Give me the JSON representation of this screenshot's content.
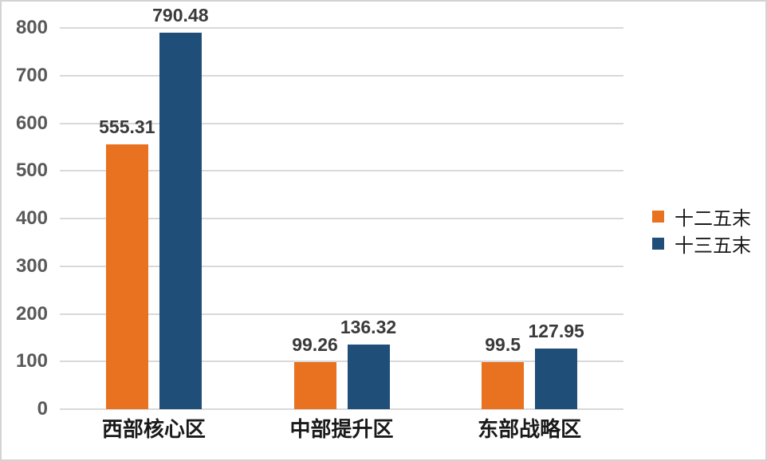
{
  "window": {
    "background": "#ffffff",
    "border_color": "#d3d3d3"
  },
  "chart_data": {
    "type": "bar",
    "title": "",
    "categories": [
      "西部核心区",
      "中部提升区",
      "东部战略区"
    ],
    "series": [
      {
        "name": "十二五末",
        "color": "#e8721f",
        "values": [
          555.31,
          99.26,
          99.5
        ]
      },
      {
        "name": "十三五末",
        "color": "#1f4e79",
        "values": [
          790.48,
          136.32,
          127.95
        ]
      }
    ],
    "data_labels": true,
    "ylim": [
      0,
      800
    ],
    "yticks": [
      0,
      100,
      200,
      300,
      400,
      500,
      600,
      700,
      800
    ],
    "grid": true,
    "legend_position": "right",
    "colors": {
      "gridline": "#d9d9d9",
      "axis_line": "#d9d9d9",
      "tick_label": "#595959",
      "data_label": "#3a3a3a",
      "category_label": "#1a1a1a"
    }
  }
}
